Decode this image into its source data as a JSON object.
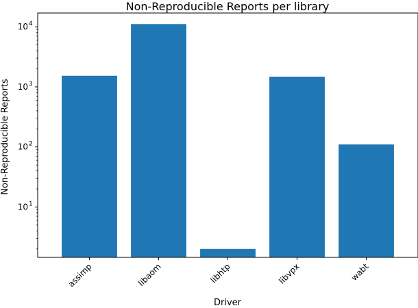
{
  "chart_data": {
    "type": "bar",
    "title": "Non-Reproducible Reports per library",
    "xlabel": "Driver",
    "ylabel": "Non-Reproducible Reports",
    "yscale": "log",
    "ylim": [
      1.45,
      17000
    ],
    "categories": [
      "assimp",
      "libaom",
      "libhtp",
      "libvpx",
      "wabt"
    ],
    "values": [
      1530,
      11100,
      2,
      1480,
      110
    ],
    "yticks": [
      {
        "value": 10,
        "base": "10",
        "exp": "1"
      },
      {
        "value": 100,
        "base": "10",
        "exp": "2"
      },
      {
        "value": 1000,
        "base": "10",
        "exp": "3"
      },
      {
        "value": 10000,
        "base": "10",
        "exp": "4"
      }
    ],
    "bar_color": "#1f77b4",
    "grid": false,
    "legend": "none"
  }
}
